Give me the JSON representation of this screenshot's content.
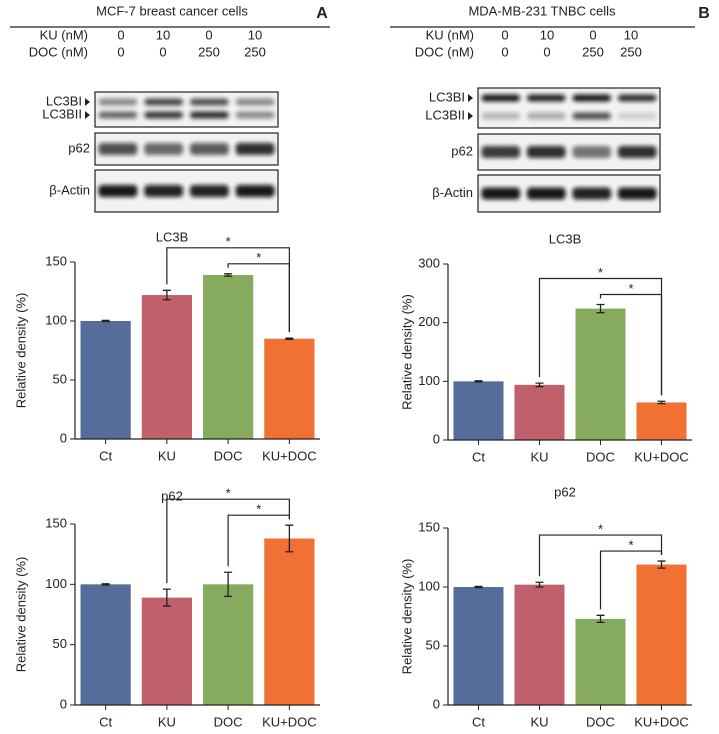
{
  "panels": [
    {
      "label": "A",
      "title": "MCF-7 breast cancer cells",
      "treatments": [
        {
          "name": "KU (nM)",
          "doses": [
            0,
            10,
            0,
            10
          ]
        },
        {
          "name": "DOC (nM)",
          "doses": [
            0,
            0,
            250,
            250
          ]
        }
      ],
      "blots": [
        "LC3BI",
        "LC3BII",
        "p62",
        "β-Actin"
      ]
    },
    {
      "label": "B",
      "title": "MDA-MB-231 TNBC cells",
      "treatments": [
        {
          "name": "KU (nM)",
          "doses": [
            0,
            10,
            0,
            10
          ]
        },
        {
          "name": "DOC (nM)",
          "doses": [
            0,
            0,
            250,
            250
          ]
        }
      ],
      "blots": [
        "LC3BI",
        "LC3BII",
        "p62",
        "β-Actin"
      ]
    }
  ],
  "chart_data": [
    {
      "type": "bar",
      "title": "LC3B",
      "y_label": "Relative density (%)",
      "categories": [
        "Ct",
        "KU",
        "DOC",
        "KU+DOC"
      ],
      "values": [
        100,
        122,
        139,
        85
      ],
      "errors": [
        0.5,
        4,
        1,
        0.5
      ],
      "colors": [
        "#566d9b",
        "#c0606b",
        "#86ab5e",
        "#f07133"
      ],
      "ylim": [
        0,
        150
      ],
      "yticks": [
        0,
        50,
        100,
        150
      ],
      "significance": [
        {
          "label": "*",
          "between": [
            "KU",
            "KU+DOC"
          ]
        },
        {
          "label": "*",
          "between": [
            "DOC",
            "KU+DOC"
          ]
        }
      ]
    },
    {
      "type": "bar",
      "title": "p62",
      "y_label": "Relative density (%)",
      "categories": [
        "Ct",
        "KU",
        "DOC",
        "KU+DOC"
      ],
      "values": [
        100,
        89,
        100,
        138
      ],
      "errors": [
        0.5,
        7,
        10,
        11
      ],
      "colors": [
        "#566d9b",
        "#c0606b",
        "#86ab5e",
        "#f07133"
      ],
      "ylim": [
        0,
        150
      ],
      "yticks": [
        0,
        50,
        100,
        150
      ],
      "significance": [
        {
          "label": "*",
          "between": [
            "KU",
            "KU+DOC"
          ]
        },
        {
          "label": "*",
          "between": [
            "DOC",
            "KU+DOC"
          ]
        }
      ]
    },
    {
      "type": "bar",
      "title": "LC3B",
      "y_label": "Relative density (%)",
      "categories": [
        "Ct",
        "KU",
        "DOC",
        "KU+DOC"
      ],
      "values": [
        100,
        94,
        224,
        64
      ],
      "errors": [
        1,
        3,
        7,
        2
      ],
      "colors": [
        "#566d9b",
        "#c0606b",
        "#86ab5e",
        "#f07133"
      ],
      "ylim": [
        0,
        300
      ],
      "yticks": [
        0,
        100,
        200,
        300
      ],
      "significance": [
        {
          "label": "*",
          "between": [
            "KU",
            "KU+DOC"
          ]
        },
        {
          "label": "*",
          "between": [
            "DOC",
            "KU+DOC"
          ]
        }
      ]
    },
    {
      "type": "bar",
      "title": "p62",
      "y_label": "Relative density (%)",
      "categories": [
        "Ct",
        "KU",
        "DOC",
        "KU+DOC"
      ],
      "values": [
        100,
        102,
        73,
        119
      ],
      "errors": [
        0.5,
        2,
        3,
        3
      ],
      "colors": [
        "#566d9b",
        "#c0606b",
        "#86ab5e",
        "#f07133"
      ],
      "ylim": [
        0,
        150
      ],
      "yticks": [
        0,
        50,
        100,
        150
      ],
      "significance": [
        {
          "label": "*",
          "between": [
            "KU",
            "KU+DOC"
          ]
        },
        {
          "label": "*",
          "between": [
            "DOC",
            "KU+DOC"
          ]
        }
      ]
    }
  ]
}
